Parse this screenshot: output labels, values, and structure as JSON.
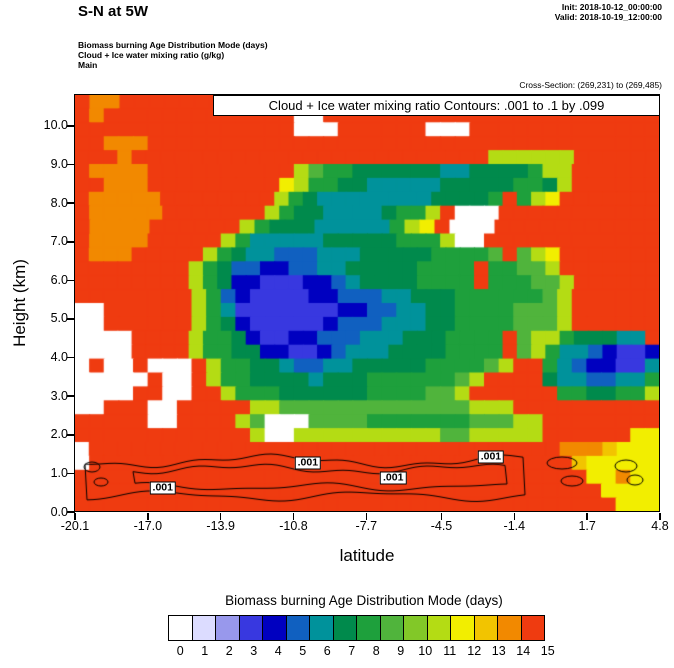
{
  "header": {
    "title": "S-N at 5W",
    "init": "Init: 2018-10-12_00:00:00",
    "valid": "Valid: 2018-10-19_12:00:00",
    "model_lines": [
      "Biomass burning Age Distribution Mode   (days)",
      "Cloud + Ice water mixing ratio   (g/kg)",
      "Main"
    ],
    "cross_section": "Cross-Section: (269,231) to (269,485)"
  },
  "chart_data": {
    "type": "heatmap",
    "title": "Cloud + Ice water mixing ratio Contours: .001 to .1 by .099",
    "xlabel": "latitude",
    "ylabel": "Height (km)",
    "xlim": [
      -20.1,
      4.8
    ],
    "ylim": [
      0,
      10.8
    ],
    "x_tick_labels": [
      "-20.1",
      "-17.0",
      "-13.9",
      "-10.8",
      "-7.7",
      "-4.5",
      "-1.4",
      "1.7",
      "4.8"
    ],
    "y_tick_labels": [
      "0.0",
      "1.0",
      "2.0",
      "3.0",
      "4.0",
      "5.0",
      "6.0",
      "7.0",
      "8.0",
      "9.0",
      "10.0"
    ],
    "grid": false,
    "contour_levels": [
      0.001,
      0.1
    ],
    "contour_labels": [
      {
        "text": ".001",
        "fx": 0.15,
        "fy": 0.942
      },
      {
        "text": ".001",
        "fx": 0.398,
        "fy": 0.882
      },
      {
        "text": ".001",
        "fx": 0.544,
        "fy": 0.918
      },
      {
        "text": ".001",
        "fx": 0.711,
        "fy": 0.868
      }
    ],
    "colorbar": {
      "title": "Biomass burning Age Distribution Mode  (days)",
      "position": "bottom",
      "tick_labels": [
        "0",
        "1",
        "2",
        "3",
        "4",
        "5",
        "6",
        "7",
        "8",
        "9",
        "10",
        "11",
        "12",
        "13",
        "14",
        "15"
      ],
      "colors": [
        "#ffffff",
        "#dcdcff",
        "#9898ec",
        "#3838e0",
        "#0000c0",
        "#1060c0",
        "#00929b",
        "#008a4c",
        "#1ea03c",
        "#50b43c",
        "#82c828",
        "#b4dc14",
        "#f2ee00",
        "#f2c400",
        "#f28900",
        "#ef3b10"
      ]
    },
    "field_rows": [
      "feeffffffffffffffffffffffffffffffffffff",
      "fefffffffffffff00fffffffffffffffffffffff",
      "fffffffffffffff000ffffff000fffffffffffff",
      "ffeeefffffffffffffffffffffffffffffffffff",
      "fffefffffffffffffffffffffffffbbbbbbffffff",
      "feeeeffffffffffb9887777776677778bbffffff",
      "ffeeefffffffffcb88776666677777887bffffff",
      "feeeeeffffffffb876666666677778 8bcfffffff",
      "feeeeefffffffb8776666788bf000fffffffffff",
      "feeeeffffffb8777666668bcf000fffffffffff",
      "feeeefffffb86666677777888b00ffffffffffff",
      "feeefffffb87665556667777788889 9bcfffffff",
      "ffffffffb8755445566777778888 8899bfffffff",
      "ffffffffb8744333445677778888 88899bffffff",
      "ffffffffb854333344555667778888889bffffff",
      "00ffffffb863333333445566778888999bffffff",
      "00ffffffb874333334555666778888999bffffff",
      "0000ffffb887433445556667778888 9bb877766f",
      "0000ffffb887744334566677778888 9b86654334",
      "0f00f000fb8877655667777788889bff86544336",
      "00000f00fb88777767778888889bffff76655668",
      "0000ff00ffb888777777888899bffffff887788b",
      "00fff00fffffbb9999999999999bbbffffffffff",
      "fffff00ffffb900099998888888999bbffffffff",
      "ffffffffffffb00bbbbbbbbbb99bbbbbffffffcc",
      "0fffffffffffffffffffffffffffffffffeeedccc",
      "0fffffffffffffffffffffffffffffffffdccccc",
      "fffffffffffffffffffffffffffffffffffccecc",
      "ffffffffffffffffffffffffffffffffffffcccc",
      "fffffffffffffffffffffffffffffffffffffccc"
    ]
  }
}
